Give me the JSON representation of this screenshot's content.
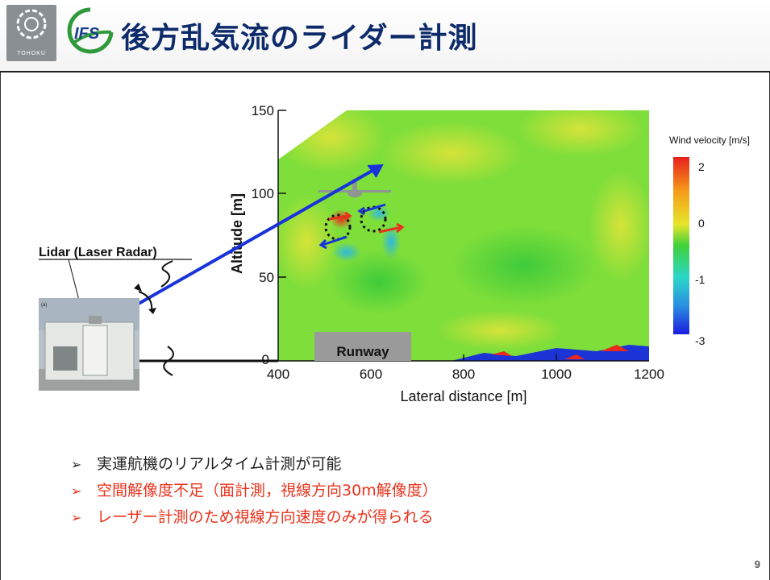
{
  "slide": {
    "title": "後方乱気流のライダー計測",
    "page_number": "9",
    "logo_left_text": "TOHOKU",
    "logo_right_text": "IFS"
  },
  "figure": {
    "lidar_label": "Lidar (Laser Radar)",
    "runway_label": "Runway",
    "xlabel": "Lateral distance [m]",
    "ylabel": "Altitude [m]",
    "x_ticks": [
      "400",
      "600",
      "800",
      "1000",
      "1200"
    ],
    "y_ticks": [
      "0",
      "50",
      "100",
      "150"
    ],
    "colorbar_title": "Wind velocity [m/s]",
    "colorbar_ticks": [
      "2",
      "0",
      "-1",
      "-3"
    ],
    "colors": {
      "positive": "#e8331c",
      "zero": "#4cd13c",
      "negative": "#1a2bd8",
      "beam": "#1733d9"
    }
  },
  "bullets": [
    "実運航機のリアルタイム計測が可能",
    "空間解像度不足（面計測，視線方向30m解像度）",
    "レーザー計測のため視線方向速度のみが得られる"
  ],
  "bullet_marker": "➢"
}
